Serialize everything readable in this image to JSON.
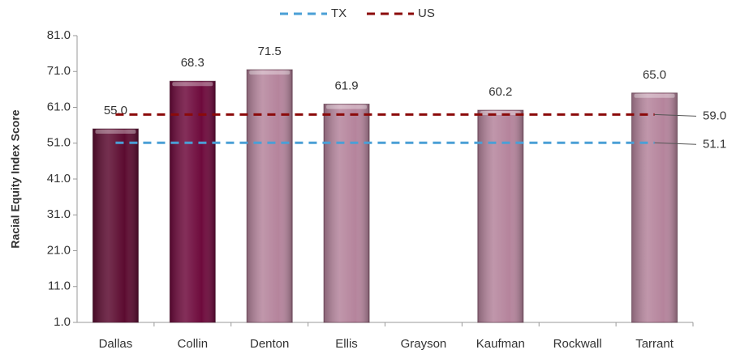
{
  "chart_data": {
    "type": "bar",
    "y_axis_label": "Racial Equity Index Score",
    "categories": [
      "Dallas",
      "Collin",
      "Denton",
      "Ellis",
      "Grayson",
      "Kaufman",
      "Rockwall",
      "Tarrant"
    ],
    "values": [
      55.0,
      68.3,
      71.5,
      61.9,
      null,
      60.2,
      null,
      65.0
    ],
    "value_labels": [
      "55.0",
      "68.3",
      "71.5",
      "61.9",
      null,
      "60.2",
      null,
      "65.0"
    ],
    "colors": [
      "#5c0b30",
      "#6e0a3c",
      "#b5849c",
      "#b5849c",
      "#b5849c",
      "#b5849c",
      "#b5849c",
      "#b5849c"
    ],
    "reference_lines": [
      {
        "name": "TX",
        "value": 51.1,
        "color": "#4a9fd6"
      },
      {
        "name": "US",
        "value": 59.0,
        "value_label": "59.0",
        "color": "#8b0a0a"
      }
    ],
    "ylim": [
      1,
      81
    ],
    "yticks": [
      {
        "value": 1,
        "label": "1.0"
      },
      {
        "value": 11,
        "label": "11.0"
      },
      {
        "value": 21,
        "label": "21.0"
      },
      {
        "value": 31,
        "label": "31.0"
      },
      {
        "value": 41,
        "label": "41.0"
      },
      {
        "value": 51,
        "label": "51.0"
      },
      {
        "value": 61,
        "label": "61.0"
      },
      {
        "value": 71,
        "label": "71.0"
      },
      {
        "value": 81,
        "label": "81.0"
      }
    ],
    "legend": "top"
  }
}
